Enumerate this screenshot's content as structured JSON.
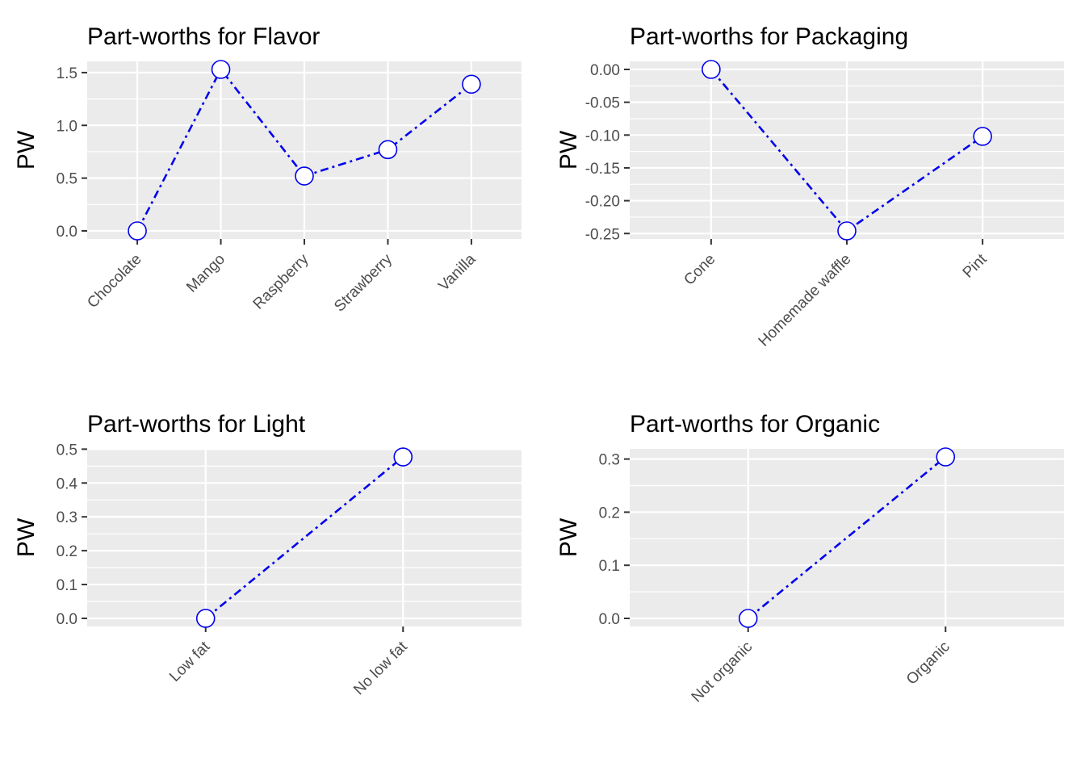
{
  "page": {
    "background": "#ffffff",
    "description": "2x2 grid of conjoint part-worth line charts"
  },
  "style": {
    "accent_blue": "#0000ee",
    "panel_background": "#ebebeb",
    "grid_color": "#ffffff",
    "axis_text_color": "#4d4d4d",
    "tick_mark_color": "#333333",
    "title_color": "#000000",
    "point_fill": "#ffffff"
  },
  "chart_data": [
    {
      "type": "line",
      "title": "Part-worths for Flavor",
      "ylabel": "PW",
      "xlabel": "",
      "categories": [
        "Chocolate",
        "Mango",
        "Raspberry",
        "Strawberry",
        "Vanilla"
      ],
      "values": [
        0.0,
        1.53,
        0.52,
        0.77,
        1.39
      ],
      "ylim": [
        -0.0765,
        1.6065
      ],
      "ytick_values": [
        0.0,
        0.5,
        1.0,
        1.5
      ],
      "ytick_labels": [
        "0.0",
        "0.5",
        "1.0",
        "1.5"
      ],
      "yminor_values": [
        0.25,
        0.75,
        1.25
      ],
      "grid": "on",
      "legend": "none",
      "line_style": "dot-dash",
      "point_shape": "open-circle"
    },
    {
      "type": "line",
      "title": "Part-worths for Packaging",
      "ylabel": "PW",
      "xlabel": "",
      "categories": [
        "Cone",
        "Homemade waffle",
        "Pint"
      ],
      "values": [
        0.0,
        -0.246,
        -0.102
      ],
      "ylim": [
        -0.2583,
        0.0123
      ],
      "ytick_values": [
        0.0,
        -0.05,
        -0.1,
        -0.15,
        -0.2,
        -0.25
      ],
      "ytick_labels": [
        "0.00",
        "-0.05",
        "-0.10",
        "-0.15",
        "-0.20",
        "-0.25"
      ],
      "yminor_values": [
        -0.025,
        -0.075,
        -0.125,
        -0.175,
        -0.225
      ],
      "grid": "on",
      "legend": "none",
      "line_style": "dot-dash",
      "point_shape": "open-circle"
    },
    {
      "type": "line",
      "title": "Part-worths for Light",
      "ylabel": "PW",
      "xlabel": "",
      "categories": [
        "Low fat",
        "No low fat"
      ],
      "values": [
        0.0,
        0.477
      ],
      "ylim": [
        -0.0239,
        0.5009
      ],
      "ytick_values": [
        0.0,
        0.1,
        0.2,
        0.3,
        0.4,
        0.5
      ],
      "ytick_labels": [
        "0.0",
        "0.1",
        "0.2",
        "0.3",
        "0.4",
        "0.5"
      ],
      "yminor_values": [
        0.05,
        0.15,
        0.25,
        0.35,
        0.45
      ],
      "grid": "on",
      "legend": "none",
      "line_style": "dot-dash",
      "point_shape": "open-circle"
    },
    {
      "type": "line",
      "title": "Part-worths for Organic",
      "ylabel": "PW",
      "xlabel": "",
      "categories": [
        "Not organic",
        "Organic"
      ],
      "values": [
        0.0,
        0.304
      ],
      "ylim": [
        -0.0152,
        0.3192
      ],
      "ytick_values": [
        0.0,
        0.1,
        0.2,
        0.3
      ],
      "ytick_labels": [
        "0.0",
        "0.1",
        "0.2",
        "0.3"
      ],
      "yminor_values": [
        0.05,
        0.15,
        0.25
      ],
      "grid": "on",
      "legend": "none",
      "line_style": "dot-dash",
      "point_shape": "open-circle"
    }
  ]
}
